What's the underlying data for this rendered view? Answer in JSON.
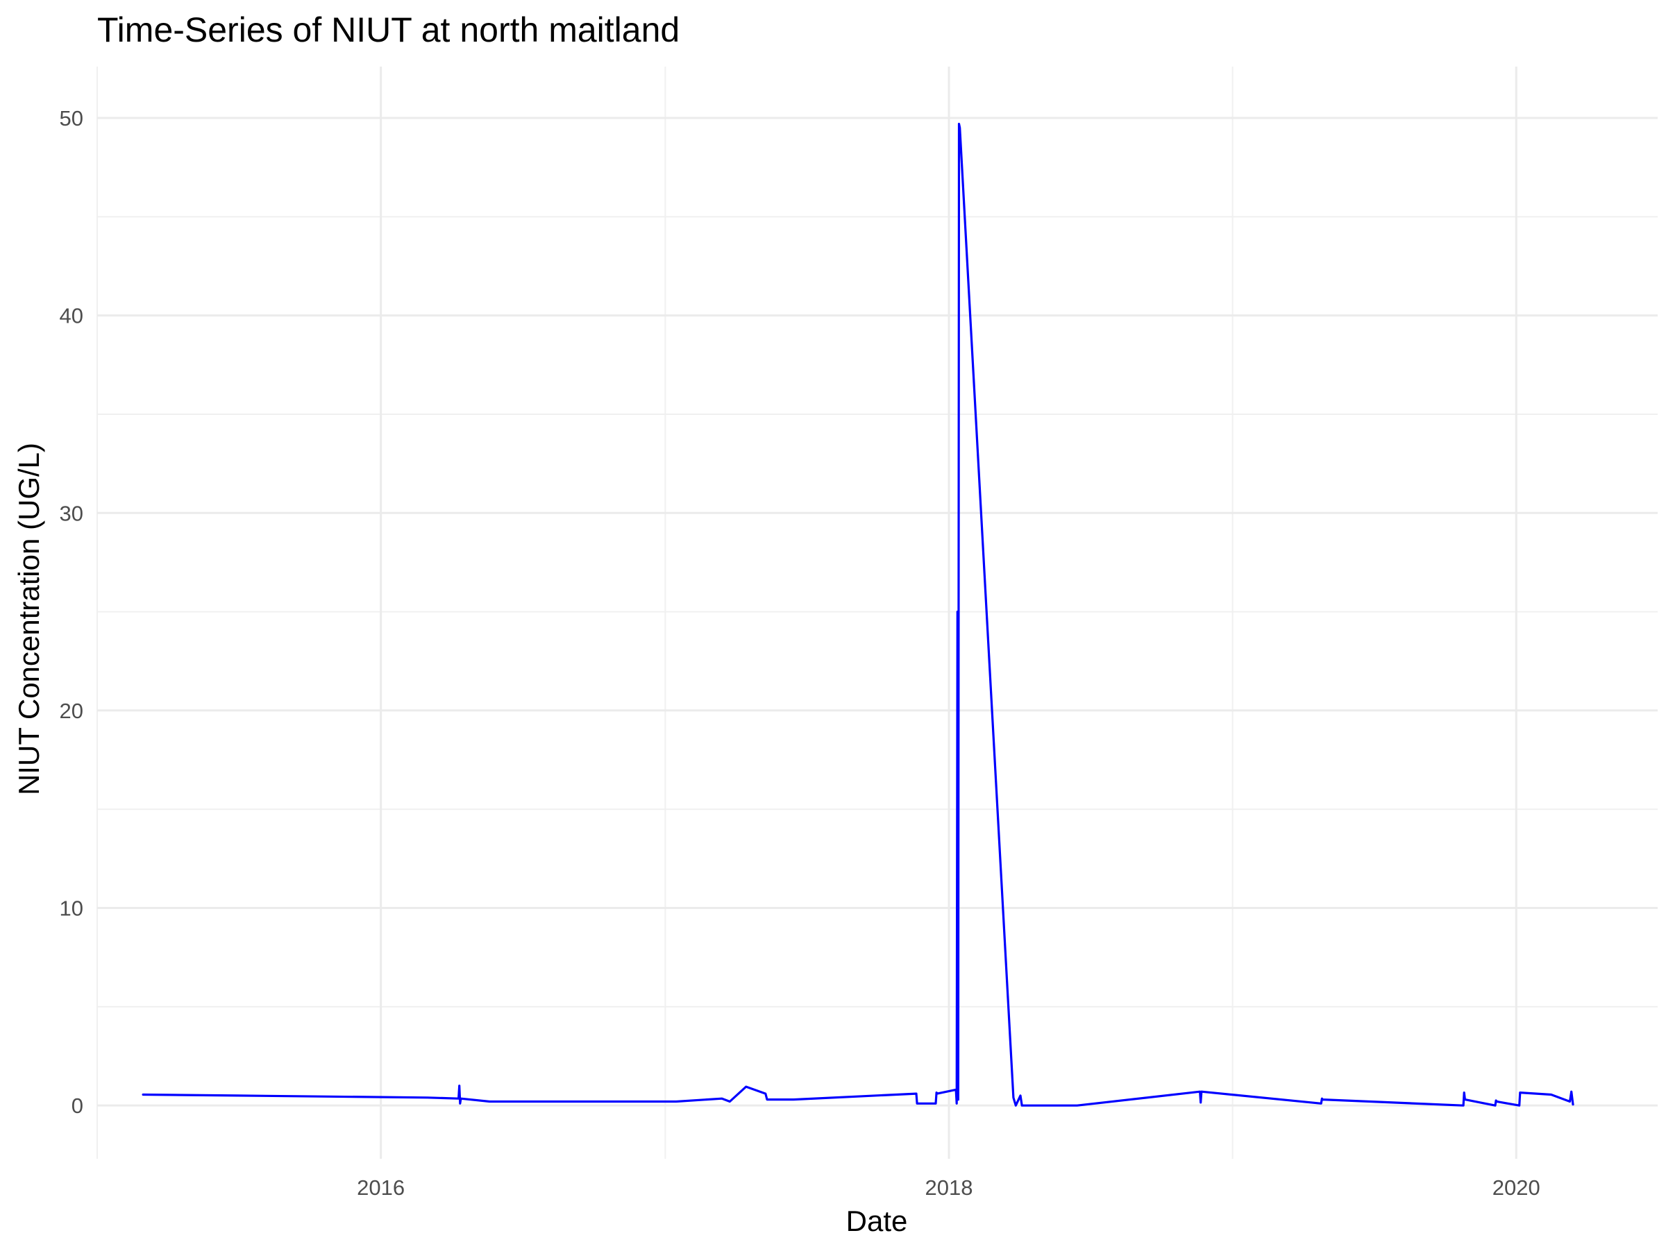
{
  "chart_data": {
    "type": "line",
    "title": "Time-Series of NIUT at north maitland",
    "xlabel": "Date",
    "ylabel": "NIUT Concentration (UG/L)",
    "x_type": "date",
    "xlim": [
      "2015-01-01",
      "2020-07-01"
    ],
    "ylim": [
      -2.7,
      52.6
    ],
    "x_ticks": [
      {
        "value": "2016-01-01",
        "label": "2016"
      },
      {
        "value": "2018-01-01",
        "label": "2018"
      },
      {
        "value": "2020-01-01",
        "label": "2020"
      }
    ],
    "y_ticks": [
      0,
      10,
      20,
      30,
      40,
      50
    ],
    "grid": true,
    "legend": "none",
    "series": [
      {
        "color": "#0000ff",
        "x": [
          "2015-03-01",
          "2015-07-01",
          "2016-03-01",
          "2016-04-10",
          "2016-04-11",
          "2016-04-12",
          "2016-04-13",
          "2016-05-20",
          "2017-01-15",
          "2017-03-15",
          "2017-03-25",
          "2017-04-15",
          "2017-05-10",
          "2017-05-12",
          "2017-06-15",
          "2017-11-20",
          "2017-11-21",
          "2017-11-22",
          "2017-12-15",
          "2017-12-16",
          "2017-12-17",
          "2018-01-10",
          "2018-01-11",
          "2018-01-12",
          "2018-01-13",
          "2018-01-14",
          "2018-01-15",
          "2018-03-25",
          "2018-03-28",
          "2018-04-03",
          "2018-04-05",
          "2018-06-15",
          "2018-11-20",
          "2018-11-21",
          "2018-11-22",
          "2019-04-25",
          "2019-04-26",
          "2019-04-27",
          "2019-10-25",
          "2019-10-26",
          "2019-10-27",
          "2019-12-05",
          "2019-12-06",
          "2019-12-07",
          "2020-01-05",
          "2020-01-06",
          "2020-02-15",
          "2020-03-10",
          "2020-03-12",
          "2020-03-14"
        ],
        "y": [
          0.55,
          0.5,
          0.4,
          0.35,
          1.0,
          0.1,
          0.35,
          0.2,
          0.2,
          0.35,
          0.2,
          0.95,
          0.6,
          0.3,
          0.3,
          0.6,
          0.1,
          0.1,
          0.1,
          0.65,
          0.6,
          0.8,
          0.1,
          25,
          0.3,
          49.7,
          49.5,
          0.4,
          0.0,
          0.5,
          0.0,
          0.0,
          0.7,
          0.15,
          0.7,
          0.1,
          0.35,
          0.3,
          0.0,
          0.65,
          0.3,
          0.0,
          0.25,
          0.2,
          0.0,
          0.65,
          0.55,
          0.2,
          0.7,
          0.05
        ]
      }
    ]
  }
}
